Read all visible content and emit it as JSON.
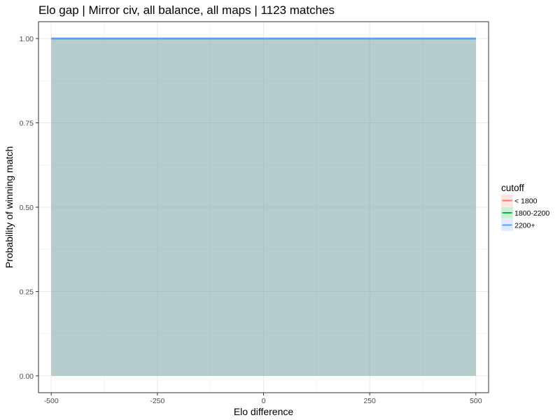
{
  "chart_data": {
    "type": "area",
    "title": "Elo gap | Mirror civ, all balance, all maps |  1123  matches",
    "xlabel": "Elo difference",
    "ylabel": "Probability of winning match",
    "xlim": [
      -530,
      530
    ],
    "ylim": [
      -0.05,
      1.05
    ],
    "x_ticks": [
      -500,
      -250,
      0,
      250,
      500
    ],
    "x_tick_labels": [
      "-500",
      "-250",
      "0",
      "250",
      "500"
    ],
    "y_ticks": [
      0,
      0.25,
      0.5,
      0.75,
      1.0
    ],
    "y_tick_labels": [
      "0.00",
      "0.25",
      "0.50",
      "0.75",
      "1.00"
    ],
    "grid": true,
    "legend_title": "cutoff",
    "legend_position": "right",
    "series": [
      {
        "name": "< 1800",
        "color": "#F8766D",
        "x": [
          -500,
          500
        ],
        "y": [
          1.0,
          1.0
        ],
        "lower": [
          0,
          0
        ],
        "upper": [
          1.0,
          1.0
        ]
      },
      {
        "name": "1800-2200",
        "color": "#00BA38",
        "x": [
          -500,
          500
        ],
        "y": [
          1.0,
          1.0
        ],
        "lower": [
          0,
          0
        ],
        "upper": [
          1.0,
          1.0
        ]
      },
      {
        "name": "2200+",
        "color": "#619CFF",
        "x": [
          -500,
          500
        ],
        "y": [
          1.0,
          1.0
        ],
        "lower": [
          0,
          0
        ],
        "upper": [
          1.0,
          1.0
        ]
      }
    ]
  }
}
